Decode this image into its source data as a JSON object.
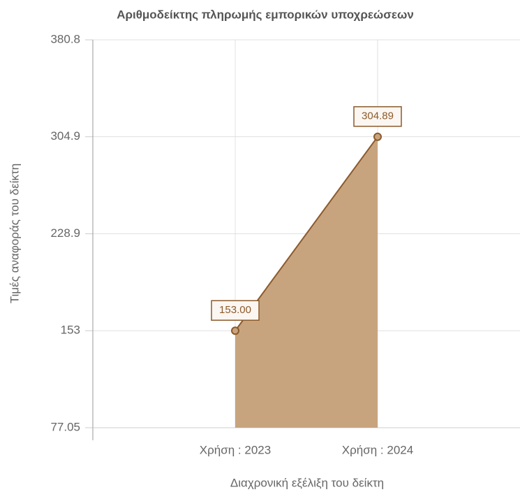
{
  "chart_data": {
    "type": "area",
    "title": "Αριθμοδείκτης πληρωμής εμπορικών υποχρεώσεων",
    "x_label": "Διαχρονική εξέλιξη του δείκτη",
    "y_label": "Τιμές αναφοράς του δείκτη",
    "categories": [
      "Χρήση : 2023",
      "Χρήση : 2024"
    ],
    "series": [
      {
        "name": "Αριθμοδείκτης πληρωμής εμπορικών υποχρεώσεων",
        "color": "#c8a47e",
        "line_color": "#8b5a2b",
        "values": [
          153,
          304.89
        ],
        "value_labels": [
          "153.00",
          "304.89"
        ]
      }
    ],
    "ylim": [
      77.05,
      380.8
    ],
    "yticks": [
      77.05,
      153,
      228.9,
      304.9,
      380.8
    ],
    "grid": true
  }
}
